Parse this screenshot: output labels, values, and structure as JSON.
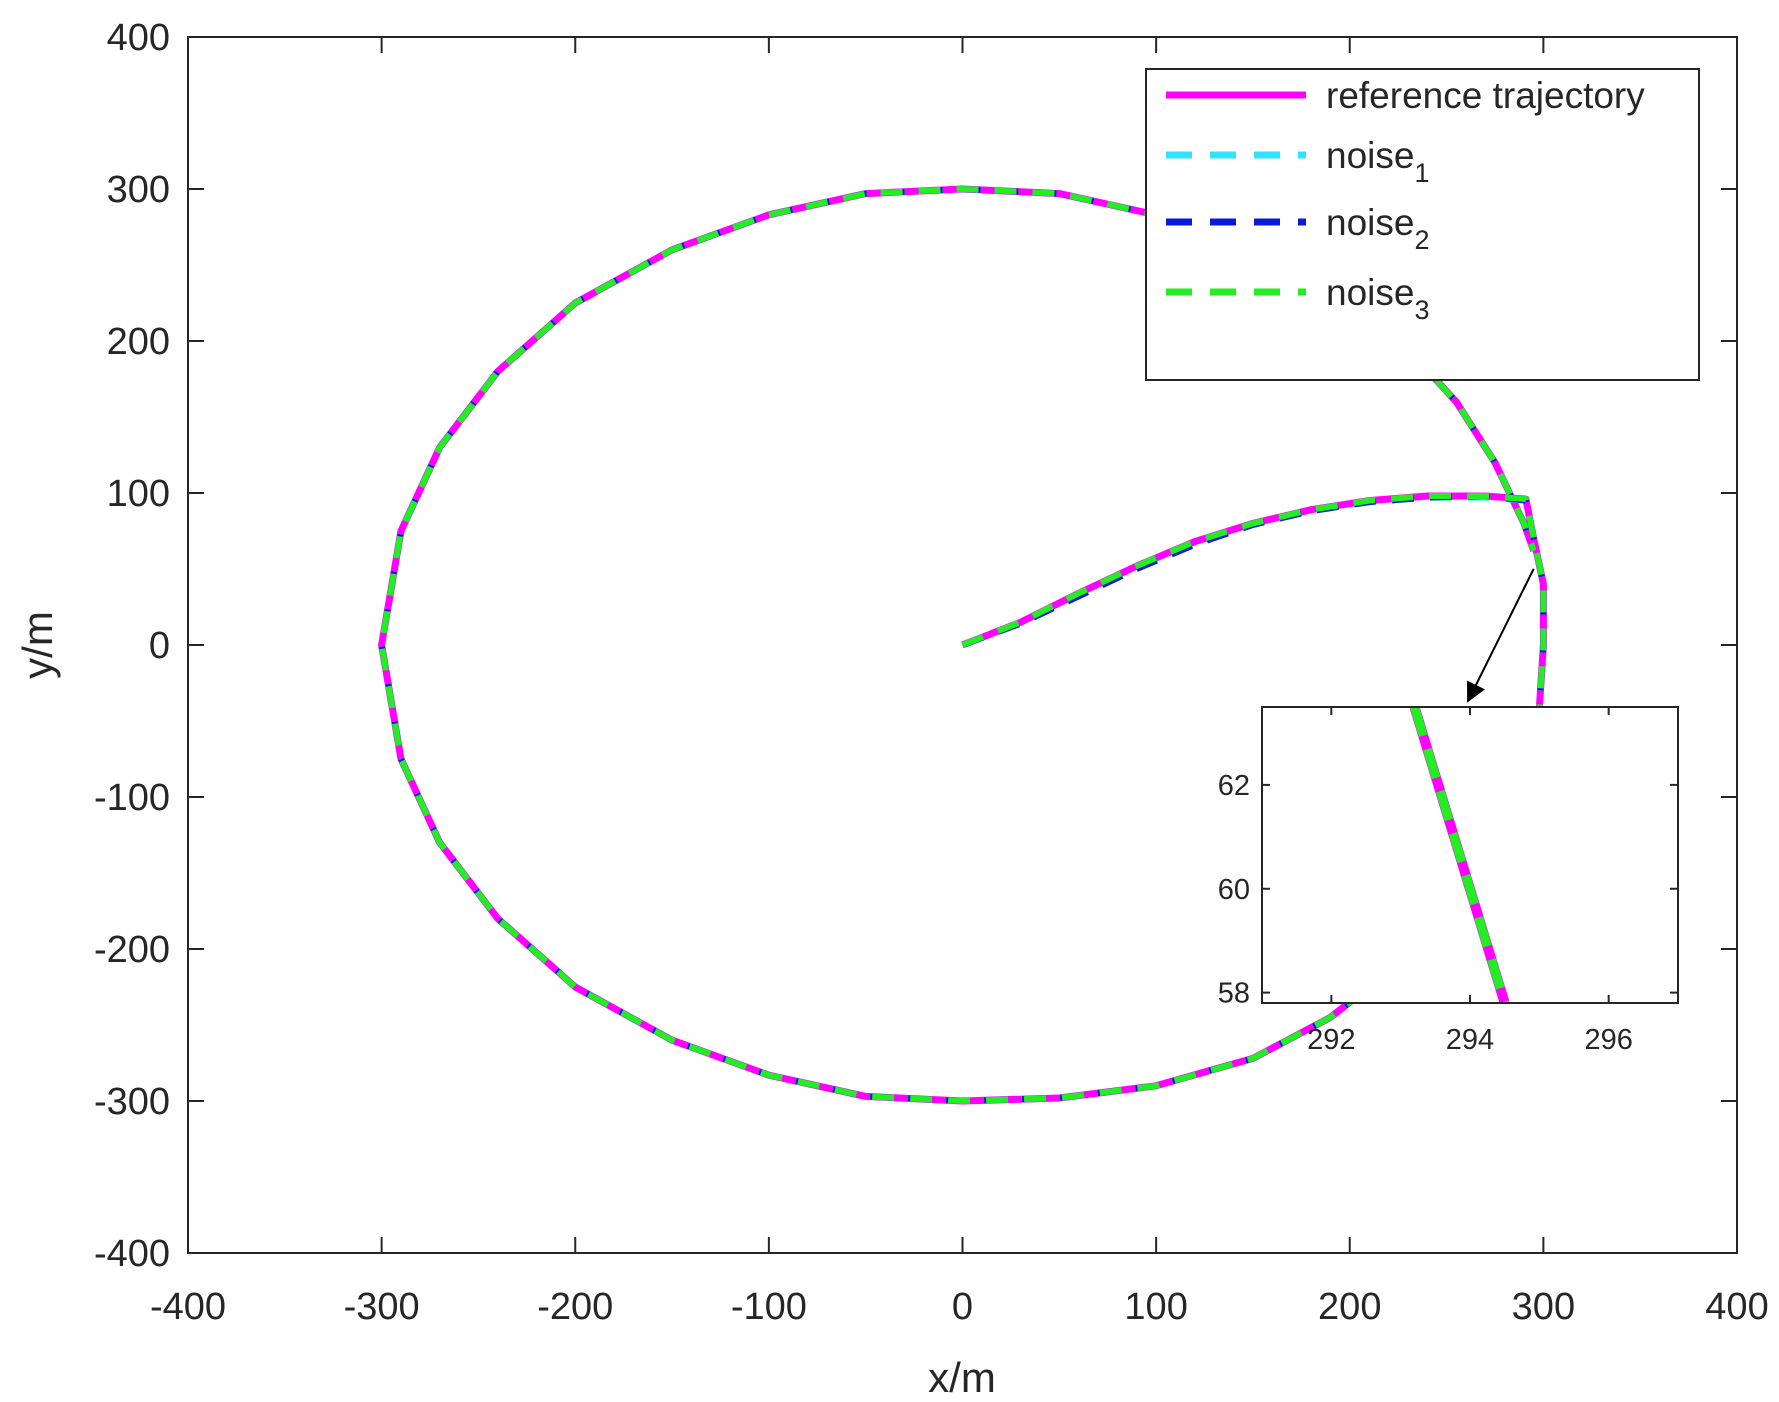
{
  "chart_data": {
    "type": "line",
    "title": "",
    "xlabel": "x/m",
    "ylabel": "y/m",
    "xlim": [
      -400,
      400
    ],
    "ylim": [
      -400,
      400
    ],
    "xticks": [
      -400,
      -300,
      -200,
      -100,
      0,
      100,
      200,
      300,
      400
    ],
    "yticks": [
      -400,
      -300,
      -200,
      -100,
      0,
      100,
      200,
      300,
      400
    ],
    "grid": false,
    "legend_position": "top-right",
    "series": [
      {
        "name": "reference trajectory",
        "color": "#ff00ff",
        "style": "solid",
        "points": [
          [
            0,
            0
          ],
          [
            30,
            15
          ],
          [
            60,
            34
          ],
          [
            90,
            52
          ],
          [
            120,
            68
          ],
          [
            150,
            80
          ],
          [
            180,
            89
          ],
          [
            210,
            95
          ],
          [
            240,
            98
          ],
          [
            270,
            98
          ],
          [
            291,
            96
          ],
          [
            295,
            70
          ],
          [
            300,
            40
          ],
          [
            300,
            0
          ],
          [
            298,
            -40
          ],
          [
            290,
            -80
          ],
          [
            275,
            -120
          ],
          [
            255,
            -160
          ],
          [
            230,
            -200
          ],
          [
            210,
            -225
          ],
          [
            190,
            -245
          ],
          [
            150,
            -272
          ],
          [
            100,
            -290
          ],
          [
            50,
            -298
          ],
          [
            0,
            -300
          ],
          [
            -50,
            -297
          ],
          [
            -100,
            -283
          ],
          [
            -150,
            -260
          ],
          [
            -200,
            -225
          ],
          [
            -240,
            -180
          ],
          [
            -270,
            -130
          ],
          [
            -290,
            -75
          ],
          [
            -300,
            0
          ],
          [
            -290,
            75
          ],
          [
            -270,
            130
          ],
          [
            -240,
            180
          ],
          [
            -200,
            225
          ],
          [
            -150,
            260
          ],
          [
            -100,
            283
          ],
          [
            -50,
            297
          ],
          [
            0,
            300
          ],
          [
            50,
            297
          ],
          [
            100,
            283
          ],
          [
            150,
            260
          ],
          [
            200,
            225
          ],
          [
            230,
            195
          ],
          [
            255,
            160
          ],
          [
            275,
            120
          ],
          [
            290,
            80
          ],
          [
            295,
            62
          ]
        ]
      },
      {
        "name": "noise1",
        "color": "#33e0ff",
        "style": "dashed",
        "points": [
          [
            0,
            0
          ],
          [
            30,
            15
          ],
          [
            60,
            33
          ],
          [
            90,
            51
          ],
          [
            120,
            67
          ],
          [
            150,
            79
          ],
          [
            180,
            88
          ],
          [
            210,
            94
          ],
          [
            240,
            97
          ],
          [
            270,
            97
          ],
          [
            291,
            95
          ],
          [
            295,
            70
          ],
          [
            300,
            40
          ],
          [
            300,
            0
          ],
          [
            298,
            -40
          ],
          [
            290,
            -80
          ],
          [
            275,
            -120
          ],
          [
            255,
            -160
          ],
          [
            230,
            -200
          ],
          [
            210,
            -225
          ],
          [
            190,
            -245
          ],
          [
            150,
            -272
          ],
          [
            100,
            -290
          ],
          [
            50,
            -298
          ],
          [
            0,
            -300
          ],
          [
            -50,
            -297
          ],
          [
            -100,
            -283
          ],
          [
            -150,
            -260
          ],
          [
            -200,
            -225
          ],
          [
            -240,
            -180
          ],
          [
            -270,
            -130
          ],
          [
            -290,
            -75
          ],
          [
            -300,
            0
          ],
          [
            -290,
            75
          ],
          [
            -270,
            130
          ],
          [
            -240,
            180
          ],
          [
            -200,
            225
          ],
          [
            -150,
            260
          ],
          [
            -100,
            283
          ],
          [
            -50,
            297
          ],
          [
            0,
            300
          ],
          [
            50,
            297
          ],
          [
            100,
            283
          ],
          [
            150,
            260
          ],
          [
            200,
            225
          ],
          [
            230,
            195
          ],
          [
            255,
            160
          ],
          [
            275,
            120
          ],
          [
            290,
            80
          ],
          [
            295,
            62
          ]
        ]
      },
      {
        "name": "noise2",
        "color": "#0a1adc",
        "style": "dashed",
        "points": [
          [
            0,
            0
          ],
          [
            30,
            14
          ],
          [
            60,
            32
          ],
          [
            90,
            50
          ],
          [
            120,
            66
          ],
          [
            150,
            79
          ],
          [
            180,
            88
          ],
          [
            210,
            94
          ],
          [
            240,
            97
          ],
          [
            270,
            98
          ],
          [
            291,
            95
          ],
          [
            295,
            70
          ],
          [
            300,
            40
          ],
          [
            300,
            0
          ],
          [
            298,
            -40
          ],
          [
            290,
            -80
          ],
          [
            275,
            -120
          ],
          [
            255,
            -160
          ],
          [
            230,
            -200
          ],
          [
            210,
            -225
          ],
          [
            190,
            -245
          ],
          [
            150,
            -272
          ],
          [
            100,
            -290
          ],
          [
            50,
            -298
          ],
          [
            0,
            -300
          ],
          [
            -50,
            -297
          ],
          [
            -100,
            -283
          ],
          [
            -150,
            -260
          ],
          [
            -200,
            -225
          ],
          [
            -240,
            -180
          ],
          [
            -270,
            -130
          ],
          [
            -290,
            -75
          ],
          [
            -300,
            0
          ],
          [
            -290,
            75
          ],
          [
            -270,
            130
          ],
          [
            -240,
            180
          ],
          [
            -200,
            225
          ],
          [
            -150,
            260
          ],
          [
            -100,
            283
          ],
          [
            -50,
            297
          ],
          [
            0,
            300
          ],
          [
            50,
            297
          ],
          [
            100,
            283
          ],
          [
            150,
            260
          ],
          [
            200,
            225
          ],
          [
            230,
            195
          ],
          [
            255,
            160
          ],
          [
            275,
            120
          ],
          [
            290,
            80
          ],
          [
            295,
            62
          ]
        ]
      },
      {
        "name": "noise3",
        "color": "#22ee22",
        "style": "dashed",
        "points": [
          [
            0,
            0
          ],
          [
            30,
            15
          ],
          [
            60,
            34
          ],
          [
            90,
            52
          ],
          [
            120,
            68
          ],
          [
            150,
            80
          ],
          [
            180,
            89
          ],
          [
            210,
            95
          ],
          [
            240,
            98
          ],
          [
            270,
            98
          ],
          [
            291,
            96
          ],
          [
            295,
            70
          ],
          [
            300,
            40
          ],
          [
            300,
            0
          ],
          [
            298,
            -40
          ],
          [
            290,
            -80
          ],
          [
            275,
            -120
          ],
          [
            255,
            -160
          ],
          [
            230,
            -200
          ],
          [
            210,
            -225
          ],
          [
            190,
            -245
          ],
          [
            150,
            -272
          ],
          [
            100,
            -290
          ],
          [
            50,
            -298
          ],
          [
            0,
            -300
          ],
          [
            -50,
            -297
          ],
          [
            -100,
            -283
          ],
          [
            -150,
            -260
          ],
          [
            -200,
            -225
          ],
          [
            -240,
            -180
          ],
          [
            -270,
            -130
          ],
          [
            -290,
            -75
          ],
          [
            -300,
            0
          ],
          [
            -290,
            75
          ],
          [
            -270,
            130
          ],
          [
            -240,
            180
          ],
          [
            -200,
            225
          ],
          [
            -150,
            260
          ],
          [
            -100,
            283
          ],
          [
            -50,
            297
          ],
          [
            0,
            300
          ],
          [
            50,
            297
          ],
          [
            100,
            283
          ],
          [
            150,
            260
          ],
          [
            200,
            225
          ],
          [
            230,
            195
          ],
          [
            255,
            160
          ],
          [
            275,
            120
          ],
          [
            290,
            80
          ],
          [
            295,
            62
          ]
        ]
      }
    ],
    "legend": [
      {
        "label": "reference trajectory",
        "sub": "",
        "color": "#ff00ff",
        "style": "solid"
      },
      {
        "label": "noise",
        "sub": "1",
        "color": "#33e0ff",
        "style": "dashed"
      },
      {
        "label": "noise",
        "sub": "2",
        "color": "#0a1adc",
        "style": "dashed"
      },
      {
        "label": "noise",
        "sub": "3",
        "color": "#22ee22",
        "style": "dashed"
      }
    ],
    "inset": {
      "xlim": [
        291,
        297
      ],
      "ylim": [
        57.8,
        63.5
      ],
      "xticks": [
        292,
        294,
        296
      ],
      "yticks": [
        58,
        60,
        62
      ],
      "zoom_point": [
        295,
        62
      ],
      "lines": [
        {
          "series": "reference trajectory",
          "color": "#ff00ff",
          "style": "solid",
          "points": [
            [
              293.2,
              63.5
            ],
            [
              294.5,
              57.8
            ]
          ]
        },
        {
          "series": "noise3",
          "color": "#22ee22",
          "style": "dashed",
          "points": [
            [
              293.2,
              63.5
            ],
            [
              294.5,
              57.8
            ]
          ]
        }
      ]
    }
  }
}
